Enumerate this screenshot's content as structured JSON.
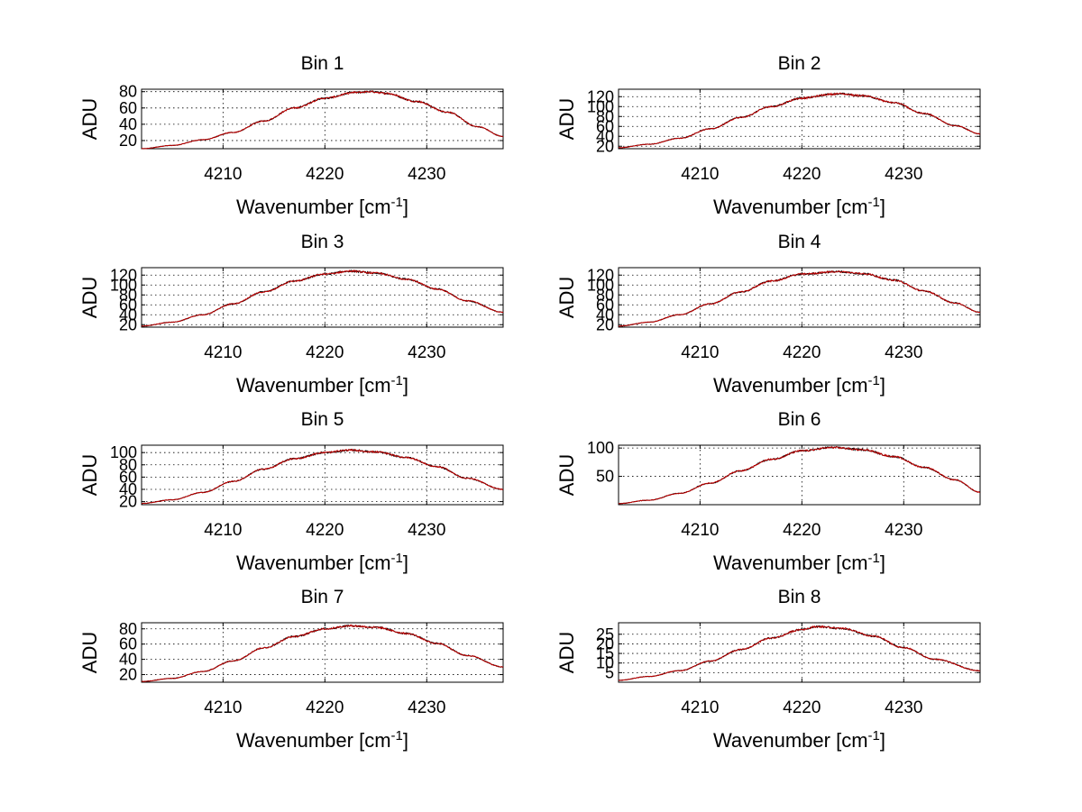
{
  "colors": {
    "trace_back": "#000000",
    "trace_front": "#c00000",
    "grid": "#000000"
  },
  "chart_data": [
    {
      "type": "line",
      "title": "Bin 1",
      "xlabel": "Wavenumber [cm",
      "xlabel_sup": "-1",
      "xlabel_end": "]",
      "ylabel": "ADU",
      "xlim": [
        4202,
        4237.5
      ],
      "ylim": [
        10,
        83
      ],
      "xticks": [
        4210,
        4220,
        4230
      ],
      "yticks": [
        20,
        40,
        60,
        80
      ],
      "grid": true,
      "series": [
        {
          "peak_x": 4224.5,
          "peak_y": 80,
          "x": [
            4202,
            4205,
            4208,
            4211,
            4214,
            4217,
            4220,
            4223,
            4224.5,
            4226,
            4229,
            4232,
            4235,
            4237.5
          ],
          "y": [
            10,
            14,
            21,
            30,
            44,
            60,
            72,
            79,
            80,
            78,
            68,
            55,
            37,
            25
          ]
        }
      ]
    },
    {
      "type": "line",
      "title": "Bin 2",
      "xlabel": "Wavenumber [cm",
      "xlabel_sup": "-1",
      "xlabel_end": "]",
      "ylabel": "ADU",
      "xlim": [
        4202,
        4237.5
      ],
      "ylim": [
        15,
        135
      ],
      "xticks": [
        4210,
        4220,
        4230
      ],
      "yticks": [
        20,
        40,
        60,
        80,
        100,
        120
      ],
      "ytick_labels": [
        "20",
        "40",
        "60",
        "80",
        "100",
        "120"
      ],
      "grid": true,
      "series": [
        {
          "peak_x": 4223.5,
          "peak_y": 126,
          "x": [
            4202,
            4205,
            4208,
            4211,
            4214,
            4217,
            4220,
            4223,
            4223.5,
            4226,
            4229,
            4232,
            4235,
            4237.5
          ],
          "y": [
            17,
            24,
            36,
            55,
            78,
            100,
            117,
            125,
            126,
            122,
            108,
            86,
            62,
            45
          ]
        }
      ]
    },
    {
      "type": "line",
      "title": "Bin 3",
      "xlabel": "Wavenumber [cm",
      "xlabel_sup": "-1",
      "xlabel_end": "]",
      "ylabel": "ADU",
      "xlim": [
        4202,
        4237.5
      ],
      "ylim": [
        15,
        135
      ],
      "xticks": [
        4210,
        4220,
        4230
      ],
      "yticks": [
        20,
        40,
        60,
        80,
        100,
        120
      ],
      "ytick_labels": [
        "20",
        "40",
        "60",
        "80",
        "100",
        "120"
      ],
      "grid": true,
      "series": [
        {
          "peak_x": 4222.5,
          "peak_y": 128,
          "x": [
            4202,
            4205,
            4208,
            4211,
            4214,
            4217,
            4220,
            4222.5,
            4225,
            4228,
            4231,
            4234,
            4237.5
          ],
          "y": [
            17,
            25,
            40,
            62,
            86,
            108,
            122,
            128,
            124,
            112,
            92,
            68,
            45
          ]
        }
      ]
    },
    {
      "type": "line",
      "title": "Bin 4",
      "xlabel": "Wavenumber [cm",
      "xlabel_sup": "-1",
      "xlabel_end": "]",
      "ylabel": "ADU",
      "xlim": [
        4202,
        4237.5
      ],
      "ylim": [
        15,
        135
      ],
      "xticks": [
        4210,
        4220,
        4230
      ],
      "yticks": [
        20,
        40,
        60,
        80,
        100,
        120
      ],
      "ytick_labels": [
        "20",
        "40",
        "60",
        "80",
        "100",
        "120"
      ],
      "grid": true,
      "series": [
        {
          "peak_x": 4223.5,
          "peak_y": 127,
          "x": [
            4202,
            4205,
            4208,
            4211,
            4214,
            4217,
            4220,
            4223.5,
            4226,
            4229,
            4232,
            4235,
            4237.5
          ],
          "y": [
            17,
            25,
            40,
            62,
            86,
            108,
            122,
            127,
            123,
            110,
            88,
            64,
            45
          ]
        }
      ]
    },
    {
      "type": "line",
      "title": "Bin 5",
      "xlabel": "Wavenumber [cm",
      "xlabel_sup": "-1",
      "xlabel_end": "]",
      "ylabel": "ADU",
      "xlim": [
        4202,
        4237.5
      ],
      "ylim": [
        15,
        112
      ],
      "xticks": [
        4210,
        4220,
        4230
      ],
      "yticks": [
        20,
        40,
        60,
        80,
        100
      ],
      "ytick_labels": [
        "20",
        "40",
        "60",
        "80",
        "100"
      ],
      "grid": true,
      "series": [
        {
          "peak_x": 4222.5,
          "peak_y": 104,
          "x": [
            4202,
            4205,
            4208,
            4211,
            4214,
            4217,
            4220,
            4222.5,
            4225,
            4228,
            4231,
            4234,
            4237.5
          ],
          "y": [
            17,
            23,
            35,
            53,
            73,
            90,
            100,
            104,
            101,
            92,
            77,
            58,
            40
          ]
        }
      ]
    },
    {
      "type": "line",
      "title": "Bin 6",
      "xlabel": "Wavenumber [cm",
      "xlabel_sup": "-1",
      "xlabel_end": "]",
      "ylabel": "ADU",
      "xlim": [
        4202,
        4237.5
      ],
      "ylim": [
        0,
        105
      ],
      "xticks": [
        4210,
        4220,
        4230
      ],
      "yticks": [
        50,
        100
      ],
      "ytick_labels": [
        "50",
        "100"
      ],
      "grid": true,
      "series": [
        {
          "peak_x": 4223,
          "peak_y": 101,
          "x": [
            4202,
            4205,
            4208,
            4211,
            4214,
            4217,
            4220,
            4223,
            4226,
            4229,
            4232,
            4235,
            4237.5
          ],
          "y": [
            2,
            8,
            20,
            38,
            60,
            80,
            95,
            101,
            97,
            85,
            66,
            44,
            22
          ]
        }
      ]
    },
    {
      "type": "line",
      "title": "Bin 7",
      "xlabel": "Wavenumber [cm",
      "xlabel_sup": "-1",
      "xlabel_end": "]",
      "ylabel": "ADU",
      "xlim": [
        4202,
        4237.5
      ],
      "ylim": [
        10,
        88
      ],
      "xticks": [
        4210,
        4220,
        4230
      ],
      "yticks": [
        20,
        40,
        60,
        80
      ],
      "grid": true,
      "series": [
        {
          "peak_x": 4222.5,
          "peak_y": 84,
          "x": [
            4202,
            4205,
            4208,
            4211,
            4214,
            4217,
            4220,
            4222.5,
            4225,
            4228,
            4231,
            4234,
            4237.5
          ],
          "y": [
            11,
            15,
            24,
            38,
            55,
            70,
            80,
            84,
            82,
            74,
            61,
            45,
            30
          ]
        }
      ]
    },
    {
      "type": "line",
      "title": "Bin 8",
      "xlabel": "Wavenumber [cm",
      "xlabel_sup": "-1",
      "xlabel_end": "]",
      "ylabel": "ADU",
      "xlim": [
        4202,
        4237.5
      ],
      "ylim": [
        0,
        31
      ],
      "xticks": [
        4210,
        4220,
        4230
      ],
      "yticks": [
        5,
        10,
        15,
        20,
        25
      ],
      "ytick_labels": [
        "5",
        "10",
        "15",
        "20",
        "25"
      ],
      "grid": true,
      "series": [
        {
          "peak_x": 4221.5,
          "peak_y": 29,
          "x": [
            4202,
            4205,
            4208,
            4211,
            4214,
            4217,
            4220,
            4221.5,
            4224,
            4227,
            4230,
            4233,
            4237.5
          ],
          "y": [
            1,
            3,
            6,
            11,
            17,
            23,
            27.5,
            29,
            28,
            24,
            18,
            12,
            6
          ]
        }
      ]
    }
  ]
}
